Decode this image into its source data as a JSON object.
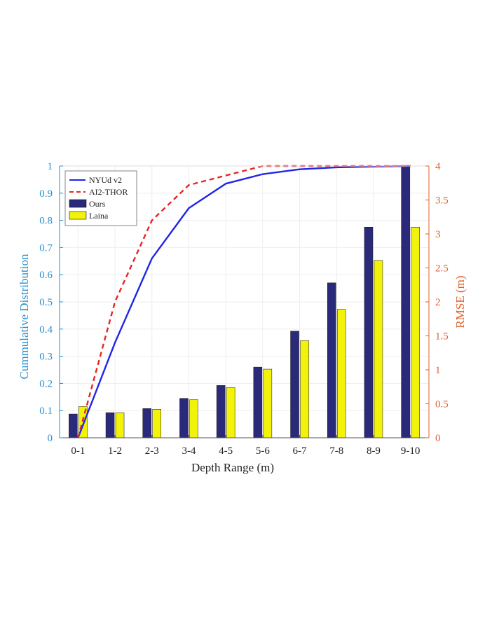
{
  "chart_data": {
    "type": "bar",
    "xlabel": "Depth Range (m)",
    "ylabel_left": "Cummulative Distribution",
    "ylabel_right": "RMSE (m)",
    "categories": [
      "0-1",
      "1-2",
      "2-3",
      "3-4",
      "4-5",
      "5-6",
      "6-7",
      "7-8",
      "8-9",
      "9-10"
    ],
    "ylim_left": [
      0,
      1
    ],
    "ylim_right": [
      0,
      4
    ],
    "yticks_left": [
      "0",
      "0.1",
      "0.2",
      "0.3",
      "0.4",
      "0.5",
      "0.6",
      "0.7",
      "0.8",
      "0.9",
      "1"
    ],
    "yticks_right": [
      "0",
      "0.5",
      "1",
      "1.5",
      "2",
      "2.5",
      "3",
      "3.5",
      "4"
    ],
    "grid": true,
    "legend_position": "top-left",
    "bar_series": [
      {
        "name": "Ours",
        "axis": "right",
        "color": "#2b2a7a",
        "values": [
          0.35,
          0.37,
          0.43,
          0.58,
          0.77,
          1.04,
          1.57,
          2.28,
          3.1,
          4.0
        ]
      },
      {
        "name": "Laina",
        "axis": "right",
        "color": "#f2f20a",
        "values": [
          0.46,
          0.37,
          0.42,
          0.56,
          0.74,
          1.01,
          1.43,
          1.89,
          2.61,
          3.1
        ]
      }
    ],
    "line_series": [
      {
        "name": "NYUd v2",
        "axis": "left",
        "color": "#1f25e6",
        "dash": false,
        "values": [
          0.0,
          0.35,
          0.66,
          0.845,
          0.935,
          0.97,
          0.988,
          0.995,
          0.998,
          1.0
        ]
      },
      {
        "name": "AI2-THOR",
        "axis": "left",
        "color": "#e52525",
        "dash": true,
        "values": [
          0.0,
          0.5,
          0.8,
          0.93,
          0.965,
          1.0,
          1.0,
          1.0,
          1.0,
          1.0
        ]
      }
    ],
    "colors": {
      "left_axis": "#2a8fd0",
      "right_axis": "#e0602b",
      "grid": "#eeeeee"
    }
  }
}
